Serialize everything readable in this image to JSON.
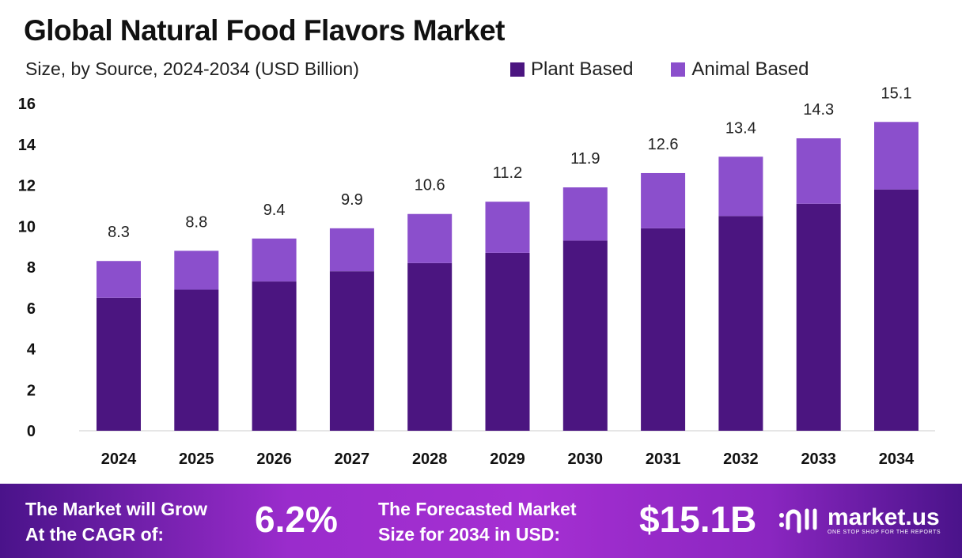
{
  "title": "Global Natural Food Flavors Market",
  "subtitle": "Size, by Source, 2024-2034 (USD Billion)",
  "chart_data": {
    "type": "bar",
    "stacked": true,
    "categories": [
      "2024",
      "2025",
      "2026",
      "2027",
      "2028",
      "2029",
      "2030",
      "2031",
      "2032",
      "2033",
      "2034"
    ],
    "series": [
      {
        "name": "Plant Based",
        "color": "#4b1580",
        "values": [
          6.5,
          6.9,
          7.3,
          7.8,
          8.2,
          8.7,
          9.3,
          9.9,
          10.5,
          11.1,
          11.8
        ]
      },
      {
        "name": "Animal Based",
        "color": "#8b4fcc",
        "values": [
          1.8,
          1.9,
          2.1,
          2.1,
          2.4,
          2.5,
          2.6,
          2.7,
          2.9,
          3.2,
          3.3
        ]
      }
    ],
    "totals": [
      "8.3",
      "8.8",
      "9.4",
      "9.9",
      "10.6",
      "11.2",
      "11.9",
      "12.6",
      "13.4",
      "14.3",
      "15.1"
    ],
    "yticks": [
      0,
      2,
      4,
      6,
      8,
      10,
      12,
      14,
      16
    ],
    "ylim": [
      0,
      16
    ],
    "legend": "top-right",
    "grid": false
  },
  "banner": {
    "cagr_label_1": "The Market will Grow",
    "cagr_label_2": "At the CAGR of:",
    "cagr_value": "6.2%",
    "forecast_label_1": "The Forecasted Market",
    "forecast_label_2": "Size for 2034 in USD:",
    "forecast_value": "$15.1B",
    "logo_name": "market.us",
    "logo_tagline": "ONE STOP SHOP FOR THE REPORTS"
  }
}
